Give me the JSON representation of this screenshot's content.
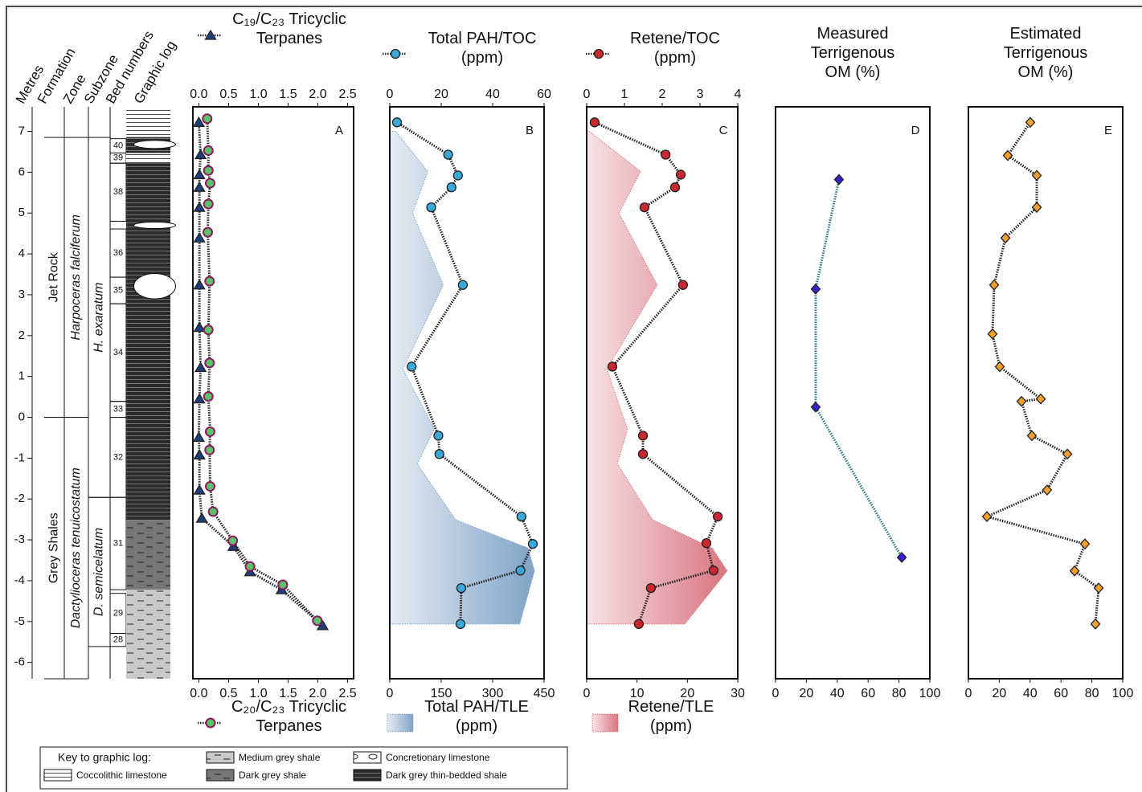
{
  "chart_data": {
    "type": "depth-profile",
    "depth_axis": {
      "label": "Metres",
      "ylim": [
        -6.4,
        7.6
      ],
      "yticks": [
        -6,
        -5,
        -4,
        -3,
        -2,
        -1,
        0,
        1,
        2,
        3,
        4,
        5,
        6,
        7
      ]
    },
    "columns": [
      "Formation",
      "Zone",
      "Subzone",
      "Bed numbers",
      "Graphic log"
    ],
    "formations": [
      {
        "name": "Jet Rock",
        "top": 6.85,
        "base": 0
      },
      {
        "name": "Grey Shales",
        "top": 0,
        "base": -6.4
      }
    ],
    "zones": [
      {
        "name": "Harpoceras falciferum",
        "top": 6.85,
        "base": 0
      },
      {
        "name": "Dactylioceras tenuicostatum",
        "top": 0,
        "base": -6.4
      }
    ],
    "subzones": [
      {
        "name": "H. exaratum",
        "top": 6.85,
        "base": -1.96
      },
      {
        "name": "D. semicelatum",
        "top": -1.96,
        "base": -5.61
      }
    ],
    "beds": [
      {
        "name": "40",
        "top": 6.82,
        "base": 6.47
      },
      {
        "name": "39",
        "top": 6.47,
        "base": 6.22
      },
      {
        "name": "38",
        "top": 6.22,
        "base": 4.8
      },
      {
        "name": "36",
        "top": 4.61,
        "base": 3.43
      },
      {
        "name": "35",
        "top": 3.43,
        "base": 2.78
      },
      {
        "name": "34",
        "top": 2.78,
        "base": 0.39
      },
      {
        "name": "33",
        "top": 0.39,
        "base": 0
      },
      {
        "name": "32",
        "top": 0,
        "base": -1.96
      },
      {
        "name": "31",
        "top": -1.96,
        "base": -4.22
      },
      {
        "name": "29",
        "top": -4.31,
        "base": -5.29
      },
      {
        "name": "28",
        "top": -5.29,
        "base": -5.61
      }
    ],
    "key": {
      "title": "Key to graphic log:",
      "items": [
        {
          "label": "Medium grey shale",
          "color": "#c9c9c9",
          "pattern": "dashes",
          "intervals": [
            [
              -4.22,
              -6.4
            ]
          ]
        },
        {
          "label": "Concretionary limestone",
          "color": "#ffffff",
          "pattern": "ovals",
          "intervals": [
            [
              6.78,
              6.58
            ],
            [
              4.78,
              4.62
            ],
            [
              3.52,
              2.9
            ]
          ]
        },
        {
          "label": "Coccolithic limestone",
          "color": "#ffffff",
          "pattern": "lines",
          "intervals": [
            [
              7.6,
              6.86
            ],
            [
              6.47,
              6.22
            ]
          ]
        },
        {
          "label": "Dark grey shale",
          "color": "#777777",
          "pattern": "dashes",
          "intervals": [
            [
              -2.51,
              -4.22
            ]
          ]
        },
        {
          "label": "Dark grey thin-bedded shale",
          "color": "#2b2b2b",
          "pattern": "lines",
          "intervals": [
            [
              6.86,
              6.47
            ],
            [
              6.22,
              -2.51
            ]
          ]
        }
      ]
    },
    "panels": [
      {
        "letter": "A",
        "top_axis": true,
        "xlim": [
          -0.1,
          2.6
        ],
        "xticks": [
          {
            "value": 0,
            "label": "0.0"
          },
          0.5,
          {
            "value": 1,
            "label": "1.0"
          },
          1.5,
          {
            "value": 2,
            "label": "2.0"
          },
          2.5
        ],
        "series": [
          {
            "name": "C₁₉/C₂₃ Tricyclic Terpanes",
            "marker": "triangle",
            "color": "#1f3d7a",
            "depth": [
              7.22,
              6.43,
              5.94,
              5.63,
              5.14,
              4.39,
              3.24,
              2.2,
              1.22,
              0.45,
              -0.49,
              -0.92,
              -1.78,
              -2.47,
              -3.16,
              -3.78,
              -4.22,
              -5.1
            ],
            "values": [
              0.0,
              0.03,
              0.01,
              0.01,
              0.01,
              0.01,
              0.01,
              0.01,
              0.03,
              0.01,
              0.0,
              0.01,
              0.01,
              0.05,
              0.58,
              0.86,
              1.39,
              2.08
            ]
          },
          {
            "name": "C₂₀/C₂₃ Tricyclic Terpanes",
            "marker": "circle",
            "color": "#5cc26a",
            "edge": "#8b1a5e",
            "depth": [
              7.31,
              6.53,
              6.04,
              5.73,
              5.22,
              4.53,
              3.33,
              2.14,
              1.33,
              0.51,
              -0.35,
              -0.8,
              -1.69,
              -2.31,
              -3.02,
              -3.65,
              -4.1,
              -4.98
            ],
            "values": [
              0.14,
              0.16,
              0.16,
              0.19,
              0.16,
              0.15,
              0.18,
              0.16,
              0.18,
              0.16,
              0.19,
              0.18,
              0.19,
              0.24,
              0.57,
              0.86,
              1.41,
              1.99
            ]
          }
        ]
      },
      {
        "letter": "B",
        "top_axis": true,
        "xlim": [
          0,
          60
        ],
        "xticks": [
          0,
          20,
          40,
          60
        ],
        "x2lim": [
          0,
          450
        ],
        "x2ticks": [
          0,
          150,
          300,
          450
        ],
        "series": [
          {
            "name": "Total PAH/TOC (ppm)",
            "marker": "circle",
            "color": "#3aa8d8",
            "depth": [
              7.22,
              6.43,
              5.92,
              5.63,
              5.14,
              3.24,
              1.24,
              -0.45,
              -0.9,
              -2.43,
              -3.1,
              -3.75,
              -4.18,
              -5.06
            ],
            "values": [
              2.8,
              22.7,
              26.5,
              24.0,
              16.1,
              28.4,
              8.5,
              18.9,
              19.3,
              51.2,
              55.6,
              50.8,
              27.8,
              27.5
            ]
          },
          {
            "name": "Total PAH/TLE (ppm)",
            "style": "area",
            "axis": "x2",
            "color": "#7fa3c7",
            "depth": [
              7.0,
              6.02,
              5.0,
              3.24,
              1.18,
              -0.29,
              -1.14,
              -2.51,
              -3.2,
              -3.76,
              -5.06
            ],
            "values": [
              17,
              111,
              66,
              156,
              38,
              130,
              80,
              192,
              403,
              422,
              379
            ]
          }
        ]
      },
      {
        "letter": "C",
        "top_axis": true,
        "xlim": [
          0,
          4
        ],
        "xticks": [
          0,
          1,
          2,
          3,
          4
        ],
        "x2lim": [
          0,
          30
        ],
        "x2ticks": [
          0,
          10,
          20,
          30
        ],
        "series": [
          {
            "name": "Retene/TOC (ppm)",
            "marker": "circle",
            "color": "#c8282e",
            "depth": [
              7.22,
              6.43,
              5.94,
              5.63,
              5.14,
              3.24,
              1.24,
              -0.45,
              -0.9,
              -2.43,
              -3.08,
              -3.75,
              -4.18,
              -5.06
            ],
            "values": [
              0.21,
              2.09,
              2.49,
              2.34,
              1.53,
              2.55,
              0.68,
              1.49,
              1.49,
              3.47,
              3.17,
              3.36,
              1.7,
              1.38
            ]
          },
          {
            "name": "Retene/TLE (ppm)",
            "style": "area",
            "axis": "x2",
            "color": "#d9747f",
            "depth": [
              7.0,
              6.02,
              5.0,
              3.24,
              1.18,
              -0.29,
              -1.14,
              -2.51,
              -3.2,
              -3.76,
              -5.06
            ],
            "values": [
              0.5,
              10.7,
              6.4,
              14.0,
              4.0,
              8.1,
              6.1,
              13.1,
              24.9,
              27.9,
              19.5
            ]
          }
        ]
      },
      {
        "letter": "D",
        "title": "Measured Terrigenous OM (%)",
        "top_axis": false,
        "xlim": [
          0,
          100
        ],
        "xticks": [
          0,
          20,
          40,
          60,
          80,
          100
        ],
        "series": [
          {
            "marker": "diamond",
            "color": "#3a1fd0",
            "line_color": "#2a7a8a",
            "depth": [
              5.82,
              3.14,
              0.25,
              -3.43
            ],
            "values": [
              41.1,
              26.0,
              26.0,
              81.8
            ]
          }
        ]
      },
      {
        "letter": "E",
        "title": "Estimated Terrigenous OM (%)",
        "top_axis": false,
        "xlim": [
          0,
          100
        ],
        "xticks": [
          0,
          20,
          40,
          60,
          80,
          100
        ],
        "series": [
          {
            "marker": "diamond",
            "color": "#f2a02a",
            "depth": [
              7.22,
              6.41,
              5.92,
              5.14,
              4.39,
              3.24,
              2.04,
              1.24,
              0.45,
              0.39,
              -0.45,
              -0.9,
              -1.78,
              -2.43,
              -3.1,
              -3.76,
              -4.18,
              -5.06
            ],
            "values": [
              40.1,
              25.5,
              44.3,
              44.3,
              24.0,
              16.7,
              15.6,
              20.3,
              46.9,
              34.4,
              41.1,
              64.1,
              51.0,
              12.0,
              75.5,
              68.8,
              84.4,
              82.3
            ]
          }
        ]
      }
    ]
  }
}
